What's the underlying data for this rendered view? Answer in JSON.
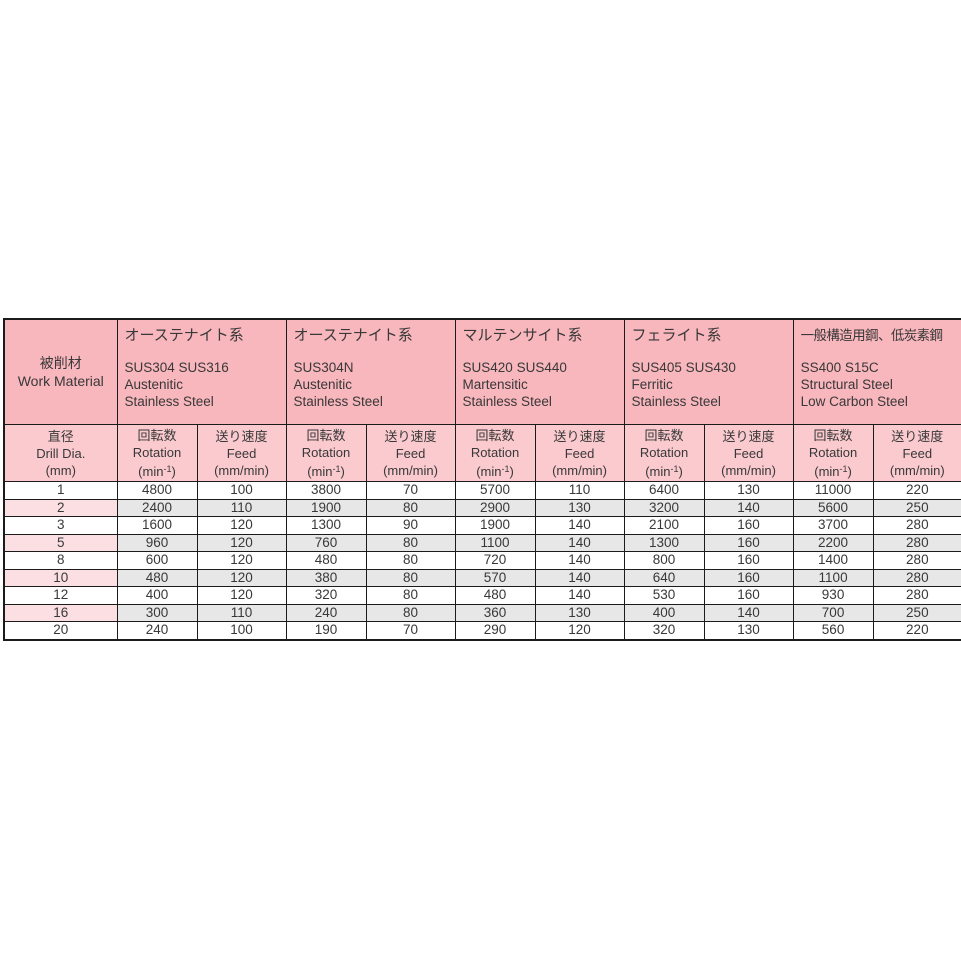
{
  "table": {
    "corner": {
      "ja": "被削材",
      "en": "Work Material"
    },
    "materials": [
      {
        "ja": "オーステナイト系",
        "grades": "SUS304 SUS316",
        "en1": "Austenitic",
        "en2": "Stainless Steel"
      },
      {
        "ja": "オーステナイト系",
        "grades": "SUS304N",
        "en1": "Austenitic",
        "en2": "Stainless Steel"
      },
      {
        "ja": "マルテンサイト系",
        "grades": "SUS420 SUS440",
        "en1": "Martensitic",
        "en2": "Stainless Steel"
      },
      {
        "ja": "フェライト系",
        "grades": "SUS405 SUS430",
        "en1": "Ferritic",
        "en2": "Stainless Steel"
      },
      {
        "ja": "一般構造用鋼、低炭素鋼",
        "grades": "SS400 S15C",
        "en1": "Structural Steel",
        "en2": "Low Carbon Steel"
      }
    ],
    "subheader": {
      "dia": {
        "ja": "直径",
        "en": "Drill Dia.",
        "unit": "(mm)"
      },
      "rotation": {
        "ja": "回転数",
        "en": "Rotation",
        "unit_base": "(min",
        "unit_sup": "-1",
        "unit_close": ")"
      },
      "feed": {
        "ja": "送り速度",
        "en": "Feed",
        "unit": "(mm/min)"
      }
    },
    "rows": [
      {
        "dia": "1",
        "values": [
          4800,
          100,
          3800,
          70,
          5700,
          110,
          6400,
          130,
          11000,
          220
        ]
      },
      {
        "dia": "2",
        "values": [
          2400,
          110,
          1900,
          80,
          2900,
          130,
          3200,
          140,
          5600,
          250
        ]
      },
      {
        "dia": "3",
        "values": [
          1600,
          120,
          1300,
          90,
          1900,
          140,
          2100,
          160,
          3700,
          280
        ]
      },
      {
        "dia": "5",
        "values": [
          960,
          120,
          760,
          80,
          1100,
          140,
          1300,
          160,
          2200,
          280
        ]
      },
      {
        "dia": "8",
        "values": [
          600,
          120,
          480,
          80,
          720,
          140,
          800,
          160,
          1400,
          280
        ]
      },
      {
        "dia": "10",
        "values": [
          480,
          120,
          380,
          80,
          570,
          140,
          640,
          160,
          1100,
          280
        ]
      },
      {
        "dia": "12",
        "values": [
          400,
          120,
          320,
          80,
          480,
          140,
          530,
          160,
          930,
          280
        ]
      },
      {
        "dia": "16",
        "values": [
          300,
          110,
          240,
          80,
          360,
          130,
          400,
          140,
          700,
          250
        ]
      },
      {
        "dia": "20",
        "values": [
          240,
          100,
          190,
          70,
          290,
          120,
          320,
          130,
          560,
          220
        ]
      }
    ],
    "shaded_row_dias": [
      "2",
      "5",
      "10",
      "16"
    ],
    "colors": {
      "header_pink": "#F8B6BD",
      "subheader_pink": "#FACACF",
      "row_pink": "#FBDFE2",
      "shade_gray": "#E7E7E7",
      "border_color": "#1B1B1B",
      "text_color": "#383838"
    }
  }
}
